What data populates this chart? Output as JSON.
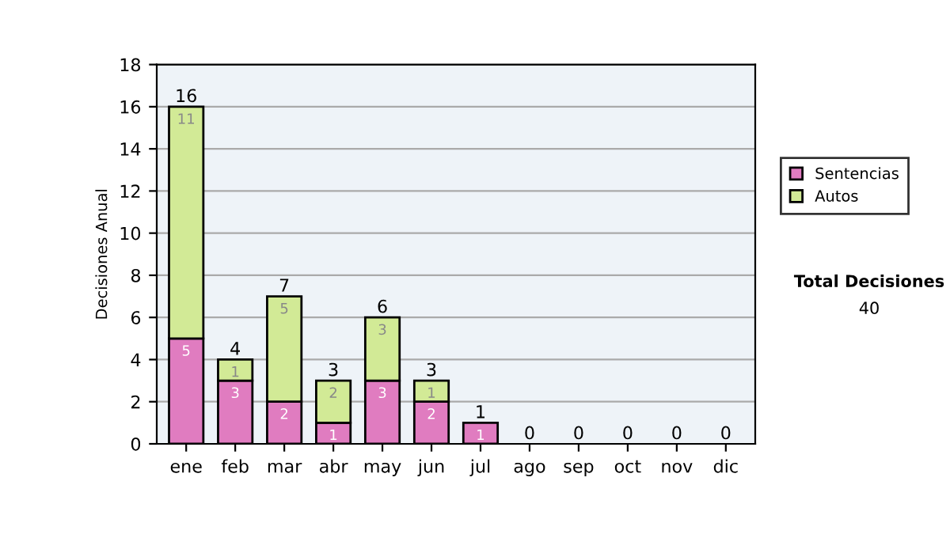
{
  "chart_data": {
    "type": "bar",
    "stacked": true,
    "ylabel": "Decisiones Anual",
    "categories": [
      "ene",
      "feb",
      "mar",
      "abr",
      "may",
      "jun",
      "jul",
      "ago",
      "sep",
      "oct",
      "nov",
      "dic"
    ],
    "series": [
      {
        "name": "Sentencias",
        "color": "#e07cc0",
        "values": [
          5,
          3,
          2,
          1,
          3,
          2,
          1,
          0,
          0,
          0,
          0,
          0
        ],
        "value_labels": [
          "5",
          "3",
          "2",
          "1",
          "3",
          "2",
          "1",
          null,
          null,
          null,
          null,
          null
        ]
      },
      {
        "name": "Autos",
        "color": "#d2ea96",
        "values": [
          11,
          1,
          5,
          2,
          3,
          1,
          0,
          0,
          0,
          0,
          0,
          0
        ],
        "value_labels": [
          "11",
          "1",
          "5",
          "2",
          "3",
          "1",
          null,
          null,
          null,
          null,
          null,
          null
        ]
      }
    ],
    "totals": [
      "16",
      "4",
      "7",
      "3",
      "6",
      "3",
      "1",
      "0",
      "0",
      "0",
      "0",
      "0"
    ],
    "ylim": [
      0,
      18
    ],
    "yticks": [
      0,
      2,
      4,
      6,
      8,
      10,
      12,
      14,
      16,
      18
    ],
    "grid": "y",
    "legend": "right",
    "annotations": [
      "Total Decisiones",
      "40"
    ]
  }
}
